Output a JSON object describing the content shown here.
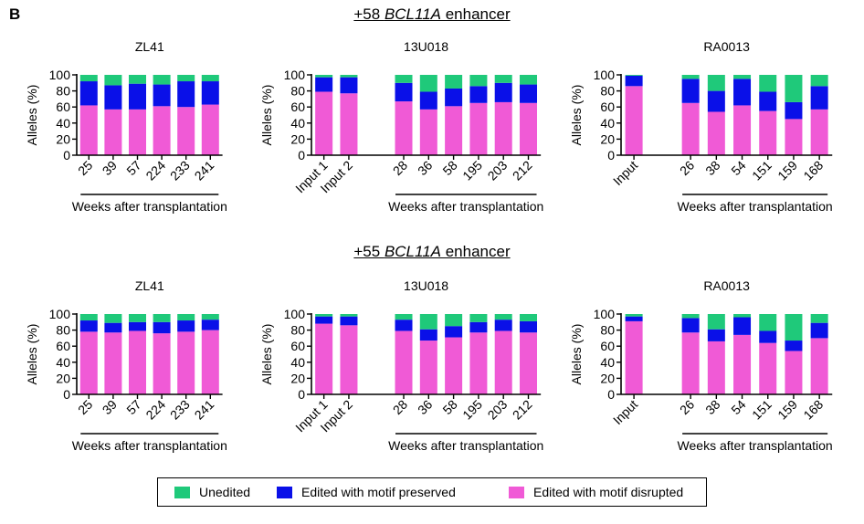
{
  "panel_label": "B",
  "colors": {
    "unedited": "#1fc97a",
    "motif_preserved": "#0a10e8",
    "motif_disrupted": "#f05ad6",
    "axis": "#000000"
  },
  "sections": [
    {
      "prefix": "+58 ",
      "gene": "BCL11A",
      "suffix": " enhancer"
    },
    {
      "prefix": "+55 ",
      "gene": "BCL11A",
      "suffix": " enhancer"
    }
  ],
  "legend": [
    {
      "label": "Unedited",
      "color_key": "unedited"
    },
    {
      "label": "Edited with motif preserved",
      "color_key": "motif_preserved"
    },
    {
      "label": "Edited with motif disrupted",
      "color_key": "motif_disrupted"
    }
  ],
  "chart_data": [
    {
      "type": "bar",
      "stacked": true,
      "section": "+58",
      "title": "ZL41",
      "ylabel": "Alleles (%)",
      "ylim": [
        0,
        100
      ],
      "yticks": [
        0,
        20,
        40,
        60,
        80,
        100
      ],
      "xlabel": "Weeks after transplantation",
      "xlabel_under": [
        "25",
        "241"
      ],
      "categories": [
        "25",
        "39",
        "57",
        "224",
        "233",
        "241"
      ],
      "series": [
        {
          "name": "Edited with motif disrupted",
          "values": [
            62,
            57,
            57,
            61,
            60,
            63
          ]
        },
        {
          "name": "Edited with motif preserved",
          "values": [
            30,
            30,
            32,
            27,
            32,
            29
          ]
        },
        {
          "name": "Unedited",
          "values": [
            8,
            13,
            11,
            12,
            8,
            8
          ]
        }
      ]
    },
    {
      "type": "bar",
      "stacked": true,
      "section": "+58",
      "title": "13U018",
      "ylabel": "Alleles (%)",
      "ylim": [
        0,
        100
      ],
      "yticks": [
        0,
        20,
        40,
        60,
        80,
        100
      ],
      "xlabel": "Weeks after transplantation",
      "xlabel_under": [
        "28",
        "212"
      ],
      "gap_after": 2,
      "categories": [
        "Input 1",
        "Input 2",
        "28",
        "36",
        "58",
        "195",
        "203",
        "212"
      ],
      "series": [
        {
          "name": "Edited with motif disrupted",
          "values": [
            79,
            77,
            67,
            57,
            61,
            65,
            66,
            65
          ]
        },
        {
          "name": "Edited with motif preserved",
          "values": [
            18,
            20,
            23,
            22,
            22,
            21,
            24,
            23
          ]
        },
        {
          "name": "Unedited",
          "values": [
            3,
            3,
            10,
            21,
            17,
            14,
            10,
            12
          ]
        }
      ]
    },
    {
      "type": "bar",
      "stacked": true,
      "section": "+58",
      "title": "RA0013",
      "ylabel": "Alleles (%)",
      "ylim": [
        0,
        100
      ],
      "yticks": [
        0,
        20,
        40,
        60,
        80,
        100
      ],
      "xlabel": "Weeks after transplantation",
      "xlabel_under": [
        "26",
        "168"
      ],
      "gap_after": 1,
      "categories": [
        "Input",
        "26",
        "38",
        "54",
        "151",
        "159",
        "168"
      ],
      "series": [
        {
          "name": "Edited with motif disrupted",
          "values": [
            86,
            65,
            54,
            62,
            55,
            45,
            57
          ]
        },
        {
          "name": "Edited with motif preserved",
          "values": [
            13,
            30,
            26,
            33,
            24,
            21,
            29
          ]
        },
        {
          "name": "Unedited",
          "values": [
            1,
            5,
            20,
            5,
            21,
            34,
            14
          ]
        }
      ]
    },
    {
      "type": "bar",
      "stacked": true,
      "section": "+55",
      "title": "ZL41",
      "ylabel": "Alleles (%)",
      "ylim": [
        0,
        100
      ],
      "yticks": [
        0,
        20,
        40,
        60,
        80,
        100
      ],
      "xlabel": "Weeks after transplantation",
      "xlabel_under": [
        "25",
        "241"
      ],
      "categories": [
        "25",
        "39",
        "57",
        "224",
        "233",
        "241"
      ],
      "series": [
        {
          "name": "Edited with motif disrupted",
          "values": [
            78,
            77,
            79,
            76,
            78,
            80
          ]
        },
        {
          "name": "Edited with motif preserved",
          "values": [
            14,
            12,
            11,
            14,
            14,
            13
          ]
        },
        {
          "name": "Unedited",
          "values": [
            8,
            11,
            10,
            10,
            8,
            7
          ]
        }
      ]
    },
    {
      "type": "bar",
      "stacked": true,
      "section": "+55",
      "title": "13U018",
      "ylabel": "Alleles (%)",
      "ylim": [
        0,
        100
      ],
      "yticks": [
        0,
        20,
        40,
        60,
        80,
        100
      ],
      "xlabel": "Weeks after transplantation",
      "xlabel_under": [
        "28",
        "212"
      ],
      "gap_after": 2,
      "categories": [
        "Input 1",
        "Input 2",
        "28",
        "36",
        "58",
        "195",
        "203",
        "212"
      ],
      "series": [
        {
          "name": "Edited with motif disrupted",
          "values": [
            88,
            86,
            79,
            67,
            71,
            77,
            79,
            77
          ]
        },
        {
          "name": "Edited with motif preserved",
          "values": [
            9,
            11,
            14,
            14,
            14,
            13,
            14,
            14
          ]
        },
        {
          "name": "Unedited",
          "values": [
            3,
            3,
            7,
            19,
            15,
            10,
            7,
            9
          ]
        }
      ]
    },
    {
      "type": "bar",
      "stacked": true,
      "section": "+55",
      "title": "RA0013",
      "ylabel": "Alleles (%)",
      "ylim": [
        0,
        100
      ],
      "yticks": [
        0,
        20,
        40,
        60,
        80,
        100
      ],
      "xlabel": "Weeks after transplantation",
      "xlabel_under": [
        "26",
        "168"
      ],
      "gap_after": 1,
      "categories": [
        "Input",
        "26",
        "38",
        "54",
        "151",
        "159",
        "168"
      ],
      "series": [
        {
          "name": "Edited with motif disrupted",
          "values": [
            91,
            77,
            66,
            74,
            64,
            54,
            70
          ]
        },
        {
          "name": "Edited with motif preserved",
          "values": [
            6,
            18,
            15,
            22,
            15,
            13,
            19
          ]
        },
        {
          "name": "Unedited",
          "values": [
            3,
            5,
            19,
            4,
            21,
            33,
            11
          ]
        }
      ]
    }
  ]
}
